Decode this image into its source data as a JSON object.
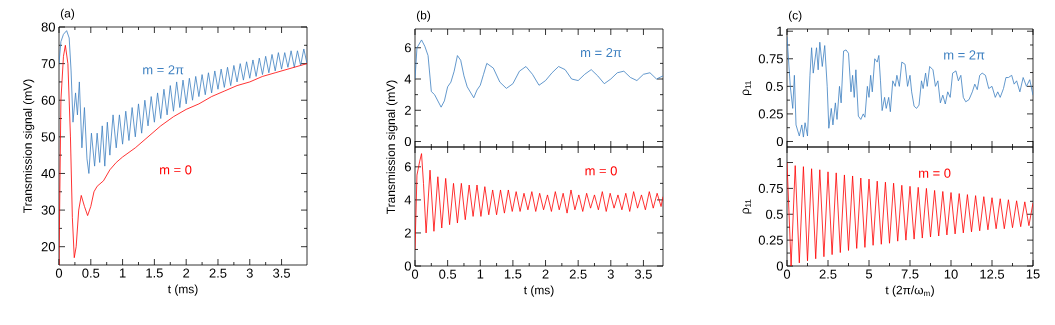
{
  "chart_data": [
    {
      "type": "line",
      "title": "(a)",
      "xlabel": "t (ms)",
      "ylabel": "Transmission signal (mV)",
      "xlim": [
        0,
        3.9
      ],
      "ylim": [
        15,
        80
      ],
      "xticks": [
        0,
        0.5,
        1,
        1.5,
        2,
        2.5,
        3,
        3.5
      ],
      "yticks": [
        20,
        30,
        40,
        50,
        60,
        70,
        80
      ],
      "series": [
        {
          "name": "m = 2π",
          "color": "#3c7fc0",
          "x": [
            0,
            0.03,
            0.07,
            0.12,
            0.16,
            0.19,
            0.22,
            0.26,
            0.29,
            0.32,
            0.36,
            0.4,
            0.44,
            0.47,
            0.51,
            0.56,
            0.6,
            0.64,
            0.68,
            0.72,
            0.76,
            0.8,
            0.85,
            0.9,
            0.95,
            1.0,
            1.05,
            1.1,
            1.15,
            1.2,
            1.25,
            1.3,
            1.35,
            1.4,
            1.45,
            1.5,
            1.55,
            1.6,
            1.65,
            1.7,
            1.75,
            1.8,
            1.85,
            1.9,
            1.95,
            2.0,
            2.05,
            2.1,
            2.15,
            2.2,
            2.25,
            2.3,
            2.35,
            2.4,
            2.45,
            2.5,
            2.55,
            2.6,
            2.65,
            2.7,
            2.75,
            2.8,
            2.85,
            2.9,
            2.95,
            3.0,
            3.05,
            3.1,
            3.15,
            3.2,
            3.25,
            3.3,
            3.35,
            3.4,
            3.45,
            3.5,
            3.55,
            3.6,
            3.65,
            3.7,
            3.75,
            3.8,
            3.85,
            3.9
          ],
          "values": [
            70,
            76,
            78,
            79,
            77,
            68,
            54,
            62,
            56,
            65,
            47,
            58,
            44,
            40,
            51,
            42,
            51,
            43,
            53,
            42,
            54,
            45,
            56,
            47,
            56,
            48,
            57,
            49,
            58,
            50,
            59,
            51,
            60,
            53,
            61,
            54,
            62,
            55,
            63,
            56,
            64,
            57,
            65,
            58,
            65.5,
            59,
            66,
            60,
            66.5,
            61,
            67,
            61.5,
            67.5,
            62,
            68,
            63,
            68.5,
            63.5,
            69,
            64,
            69.5,
            65,
            70,
            65.5,
            70.5,
            66,
            71,
            66.5,
            71.5,
            67,
            72,
            67.5,
            72.5,
            68,
            73,
            68.5,
            73,
            69,
            73.5,
            69,
            73.5,
            69.5,
            74,
            70
          ]
        },
        {
          "name": "m = 0",
          "color": "#ff0000",
          "x": [
            0,
            0.03,
            0.07,
            0.1,
            0.14,
            0.18,
            0.21,
            0.24,
            0.27,
            0.31,
            0.35,
            0.4,
            0.45,
            0.5,
            0.55,
            0.6,
            0.7,
            0.8,
            0.9,
            1.0,
            1.2,
            1.4,
            1.6,
            1.8,
            2.0,
            2.2,
            2.4,
            2.6,
            2.8,
            3.0,
            3.2,
            3.4,
            3.6,
            3.8,
            3.9
          ],
          "values": [
            15,
            60,
            72,
            75,
            70,
            50,
            28,
            17,
            20,
            30,
            34,
            31,
            28.5,
            31,
            35,
            36.5,
            38,
            41,
            43,
            44.5,
            47,
            50,
            53,
            55.5,
            57.5,
            59,
            61,
            62.5,
            64,
            65,
            66.5,
            67.5,
            68.5,
            69.5,
            70
          ]
        }
      ]
    },
    {
      "type": "line",
      "title": "(b)",
      "xlim": [
        0,
        3.8
      ],
      "ylim": [
        -0.35,
        7.2
      ],
      "xticks": [
        0,
        0.5,
        1,
        1.5,
        2,
        2.5,
        3,
        3.5
      ],
      "yticks": [
        0,
        2,
        4,
        6
      ],
      "tick_labels": "y",
      "series": [
        {
          "name": "m = 2π",
          "color": "#3c7fc0",
          "x": [
            0,
            0.03,
            0.1,
            0.15,
            0.2,
            0.25,
            0.3,
            0.4,
            0.45,
            0.5,
            0.55,
            0.6,
            0.65,
            0.7,
            0.75,
            0.8,
            0.9,
            0.95,
            1.0,
            1.05,
            1.1,
            1.2,
            1.3,
            1.4,
            1.5,
            1.6,
            1.7,
            1.8,
            1.9,
            2.0,
            2.1,
            2.2,
            2.3,
            2.4,
            2.5,
            2.6,
            2.7,
            2.8,
            2.9,
            3.0,
            3.1,
            3.2,
            3.3,
            3.4,
            3.5,
            3.6,
            3.7,
            3.8
          ],
          "values": [
            4,
            6,
            6.5,
            6.1,
            5.5,
            3.2,
            3.0,
            2.2,
            2.6,
            3.5,
            3.8,
            4.5,
            5.5,
            5.2,
            4.2,
            3.5,
            2.8,
            3.3,
            3.6,
            4.3,
            5.0,
            4.7,
            3.8,
            3.4,
            3.7,
            4.5,
            4.8,
            4.3,
            3.6,
            3.9,
            4.4,
            4.8,
            4.6,
            4.0,
            3.9,
            4.3,
            4.6,
            4.2,
            3.7,
            4.0,
            4.4,
            4.5,
            4.1,
            3.9,
            4.3,
            4.4,
            4.0,
            4.2
          ]
        }
      ]
    },
    {
      "type": "line",
      "xlabel": "t (ms)",
      "ylabel": "Transmission signal (mV)",
      "xlim": [
        0,
        3.8
      ],
      "ylim": [
        0,
        7.2
      ],
      "xticks": [
        0,
        0.5,
        1,
        1.5,
        2,
        2.5,
        3,
        3.5
      ],
      "yticks": [
        0,
        2,
        4,
        6
      ],
      "series": [
        {
          "name": "m = 0",
          "color": "#ff0000",
          "x": [
            0,
            0.03,
            0.07,
            0.1,
            0.13,
            0.17,
            0.23,
            0.29,
            0.35,
            0.41,
            0.47,
            0.53,
            0.59,
            0.65,
            0.71,
            0.77,
            0.83,
            0.89,
            0.95,
            1.01,
            1.07,
            1.13,
            1.19,
            1.25,
            1.31,
            1.37,
            1.43,
            1.49,
            1.55,
            1.61,
            1.67,
            1.73,
            1.79,
            1.85,
            1.91,
            1.97,
            2.03,
            2.09,
            2.15,
            2.21,
            2.27,
            2.33,
            2.39,
            2.45,
            2.51,
            2.57,
            2.63,
            2.69,
            2.75,
            2.81,
            2.87,
            2.93,
            2.99,
            3.05,
            3.11,
            3.17,
            3.23,
            3.29,
            3.35,
            3.41,
            3.47,
            3.53,
            3.59,
            3.65,
            3.71,
            3.77,
            3.8
          ],
          "values": [
            1,
            5.5,
            6.3,
            6.8,
            5,
            2,
            5.8,
            2.1,
            5.4,
            2.3,
            5.3,
            2.5,
            5.0,
            2.6,
            5.0,
            2.8,
            4.9,
            3.0,
            4.9,
            3.0,
            4.8,
            3.1,
            4.6,
            3.1,
            4.6,
            3.2,
            4.6,
            3.3,
            4.5,
            3.3,
            4.4,
            3.4,
            4.5,
            3.3,
            4.4,
            3.4,
            4.3,
            3.3,
            4.5,
            3.4,
            4.4,
            3.2,
            4.6,
            3.4,
            4.3,
            3.3,
            4.4,
            3.5,
            4.3,
            3.4,
            4.5,
            3.3,
            4.4,
            3.5,
            4.3,
            3.4,
            4.4,
            3.3,
            4.5,
            3.5,
            4.3,
            3.4,
            4.5,
            3.5,
            4.4,
            3.6,
            4.2
          ]
        }
      ]
    },
    {
      "type": "line",
      "title": "(c)",
      "ylabel": "ρ$_{11}$",
      "xlim": [
        0,
        15
      ],
      "ylim": [
        -0.05,
        1.02
      ],
      "xticks": [
        0,
        2.5,
        5,
        7.5,
        10,
        12.5,
        15
      ],
      "yticks": [
        0,
        0.25,
        0.5,
        0.75,
        1
      ],
      "tick_labels": "y",
      "series": [
        {
          "name": "m = 2π",
          "color": "#3c7fc0",
          "x": [
            0,
            0.2,
            0.35,
            0.45,
            0.55,
            0.75,
            0.9,
            1.0,
            1.1,
            1.25,
            1.4,
            1.5,
            1.6,
            1.8,
            1.9,
            2.0,
            2.15,
            2.3,
            2.45,
            2.55,
            2.7,
            2.8,
            2.95,
            3.05,
            3.2,
            3.3,
            3.45,
            3.6,
            3.75,
            3.9,
            4.0,
            4.1,
            4.2,
            4.35,
            4.5,
            4.65,
            4.75,
            4.9,
            5.0,
            5.1,
            5.2,
            5.35,
            5.5,
            5.6,
            5.7,
            5.8,
            5.95,
            6.05,
            6.2,
            6.3,
            6.45,
            6.6,
            6.7,
            6.85,
            7.0,
            7.2,
            7.35,
            7.5,
            7.6,
            7.75,
            7.9,
            8.05,
            8.2,
            8.3,
            8.45,
            8.55,
            8.7,
            8.9,
            9.05,
            9.2,
            9.35,
            9.5,
            9.65,
            9.8,
            9.95,
            10.1,
            10.3,
            10.45,
            10.6,
            10.75,
            10.9,
            11.1,
            11.3,
            11.45,
            11.6,
            11.75,
            11.9,
            12.1,
            12.3,
            12.5,
            12.7,
            12.85,
            13.0,
            13.2,
            13.35,
            13.5,
            13.7,
            13.85,
            14.0,
            14.2,
            14.4,
            14.6,
            14.8,
            15.0
          ],
          "values": [
            0.95,
            0.5,
            0.3,
            0.6,
            0.15,
            0.05,
            0.15,
            0.04,
            0.17,
            0.05,
            0.6,
            0.85,
            0.62,
            0.85,
            0.65,
            0.9,
            0.68,
            0.87,
            0.5,
            0.12,
            0.3,
            0.15,
            0.35,
            0.2,
            0.5,
            0.35,
            0.82,
            0.83,
            0.8,
            0.45,
            0.6,
            0.4,
            0.65,
            0.23,
            0.2,
            0.25,
            0.22,
            0.5,
            0.4,
            0.6,
            0.45,
            0.75,
            0.72,
            0.78,
            0.55,
            0.28,
            0.4,
            0.3,
            0.4,
            0.27,
            0.55,
            0.5,
            0.6,
            0.5,
            0.72,
            0.7,
            0.5,
            0.6,
            0.45,
            0.32,
            0.3,
            0.33,
            0.55,
            0.48,
            0.62,
            0.5,
            0.68,
            0.65,
            0.5,
            0.55,
            0.35,
            0.42,
            0.34,
            0.45,
            0.4,
            0.62,
            0.64,
            0.55,
            0.6,
            0.4,
            0.36,
            0.38,
            0.45,
            0.52,
            0.47,
            0.6,
            0.62,
            0.6,
            0.48,
            0.5,
            0.4,
            0.45,
            0.4,
            0.48,
            0.58,
            0.58,
            0.6,
            0.52,
            0.55,
            0.45,
            0.58,
            0.5,
            0.56,
            0.42
          ]
        }
      ]
    },
    {
      "type": "line",
      "xlabel": "t (2π/ω$_{m}$)",
      "ylabel": "ρ$_{11}$",
      "xlim": [
        0,
        15
      ],
      "ylim": [
        0,
        1.15
      ],
      "xticks": [
        0,
        2.5,
        5,
        7.5,
        10,
        12.5,
        15
      ],
      "yticks": [
        0,
        0.25,
        0.5,
        0.75,
        1
      ],
      "series": [
        {
          "name": "m = 0",
          "color": "#ff0000",
          "x": [
            0,
            0.25,
            0.5,
            0.75,
            1,
            1.25,
            1.5,
            1.75,
            2,
            2.25,
            2.5,
            2.75,
            3,
            3.25,
            3.5,
            3.75,
            4,
            4.25,
            4.5,
            4.75,
            5,
            5.25,
            5.5,
            5.75,
            6,
            6.25,
            6.5,
            6.75,
            7,
            7.25,
            7.5,
            7.75,
            8,
            8.25,
            8.5,
            8.75,
            9,
            9.25,
            9.5,
            9.75,
            10,
            10.25,
            10.5,
            10.75,
            11,
            11.25,
            11.5,
            11.75,
            12,
            12.25,
            12.5,
            12.75,
            13,
            13.25,
            13.5,
            13.75,
            14,
            14.25,
            14.5,
            14.75,
            15
          ],
          "values": [
            1.0,
            0.0,
            0.97,
            0.03,
            0.96,
            0.05,
            0.94,
            0.07,
            0.93,
            0.09,
            0.91,
            0.11,
            0.9,
            0.13,
            0.88,
            0.15,
            0.87,
            0.17,
            0.85,
            0.18,
            0.84,
            0.2,
            0.82,
            0.21,
            0.81,
            0.22,
            0.8,
            0.24,
            0.78,
            0.25,
            0.77,
            0.26,
            0.76,
            0.27,
            0.75,
            0.28,
            0.73,
            0.29,
            0.72,
            0.3,
            0.71,
            0.31,
            0.7,
            0.32,
            0.69,
            0.33,
            0.68,
            0.34,
            0.67,
            0.35,
            0.66,
            0.36,
            0.65,
            0.36,
            0.64,
            0.37,
            0.63,
            0.38,
            0.62,
            0.39,
            0.61
          ]
        }
      ]
    }
  ]
}
